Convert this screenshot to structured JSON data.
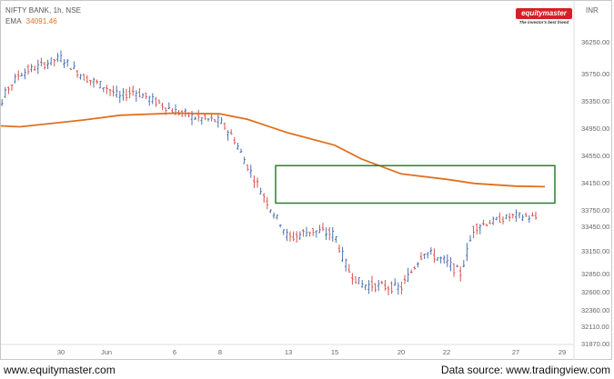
{
  "header": {
    "symbol_line": "NIFTY BANK, 1h, NSE",
    "ema_label": "EMA",
    "ema_value": "34091.46"
  },
  "logo": {
    "brand": "equitymaster",
    "tagline": "The investor's best friend"
  },
  "currency": "INR",
  "footer": {
    "left": "www.equitymaster.com",
    "right": "Data source: www.tradingview.com"
  },
  "colors": {
    "up_candle": "#4a72b0",
    "down_candle": "#d9534f",
    "ema_line": "#e07020",
    "highlight_box": "#2e7d32"
  },
  "chart_data": {
    "type": "line",
    "title": "NIFTY BANK, 1h, NSE",
    "xlabel": "",
    "ylabel": "",
    "y_ticks": [
      36250,
      35750,
      35350,
      34950,
      34550,
      34150,
      33750,
      33450,
      33150,
      32850,
      32600,
      32360,
      32110,
      31870
    ],
    "x_ticks": [
      "30",
      "Jun",
      "6",
      "8",
      "13",
      "15",
      "20",
      "22",
      "27",
      "29"
    ],
    "x_tick_dates": [
      "2022-05-30",
      "2022-06-01",
      "2022-06-06",
      "2022-06-08",
      "2022-06-13",
      "2022-06-15",
      "2022-06-20",
      "2022-06-22",
      "2022-06-27",
      "2022-06-29"
    ],
    "ylim": [
      31800,
      36500
    ],
    "grid": false,
    "series": [
      {
        "name": "NIFTY BANK",
        "dates": [
          "2022-05-24",
          "2022-05-25",
          "2022-05-26",
          "2022-05-27",
          "2022-05-30",
          "2022-05-31",
          "2022-06-01",
          "2022-06-02",
          "2022-06-03",
          "2022-06-06",
          "2022-06-07",
          "2022-06-08",
          "2022-06-09",
          "2022-06-10",
          "2022-06-13",
          "2022-06-14",
          "2022-06-15",
          "2022-06-16",
          "2022-06-17",
          "2022-06-20",
          "2022-06-21",
          "2022-06-22",
          "2022-06-23",
          "2022-06-24",
          "2022-06-27",
          "2022-06-28"
        ],
        "values": [
          34400,
          34900,
          35500,
          35750,
          36000,
          35700,
          35550,
          35400,
          35500,
          35200,
          35100,
          35050,
          34800,
          34400,
          33300,
          33400,
          33350,
          32900,
          32700,
          32650,
          33150,
          33000,
          32850,
          33450,
          33650,
          33600
        ]
      },
      {
        "name": "EMA",
        "dates": [
          "2022-05-24",
          "2022-05-27",
          "2022-05-31",
          "2022-06-02",
          "2022-06-06",
          "2022-06-08",
          "2022-06-10",
          "2022-06-13",
          "2022-06-15",
          "2022-06-17",
          "2022-06-20",
          "2022-06-22",
          "2022-06-24",
          "2022-06-27",
          "2022-06-28"
        ],
        "values": [
          35000,
          34970,
          35070,
          35140,
          35170,
          35160,
          35080,
          34880,
          34700,
          34500,
          34280,
          34200,
          34140,
          34100,
          34091
        ]
      }
    ],
    "annotations": [
      {
        "type": "rectangle",
        "color": "#2e7d32",
        "x_range": [
          "2022-06-10",
          "2022-06-28"
        ],
        "y_range": [
          33850,
          34400
        ]
      }
    ]
  }
}
